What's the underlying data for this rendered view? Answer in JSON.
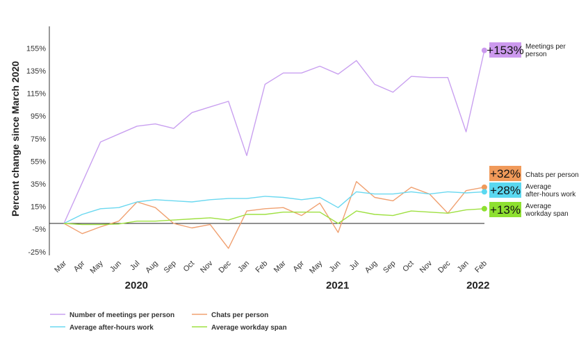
{
  "chart_data": {
    "type": "line",
    "ylabel": "Percent change since March 2020",
    "y_ticks": [
      "155%",
      "135%",
      "115%",
      "95%",
      "75%",
      "55%",
      "35%",
      "15%",
      "-5%",
      "-25%"
    ],
    "ylim": [
      -25,
      165
    ],
    "categories": [
      "Mar",
      "Apr",
      "May",
      "Jun",
      "Jul",
      "Aug",
      "Sep",
      "Oct",
      "Nov",
      "Dec",
      "Jan",
      "Feb",
      "Mar",
      "Apr",
      "May",
      "Jun",
      "Jul",
      "Aug",
      "Sep",
      "Oct",
      "Nov",
      "Dec",
      "Jan",
      "Feb"
    ],
    "year_labels": [
      {
        "text": "2020",
        "index": 4.5
      },
      {
        "text": "2021",
        "index": 15.5
      },
      {
        "text": "2022",
        "index": 22.5
      }
    ],
    "series": [
      {
        "name": "Number of meetings per person",
        "color": "#c9a0f0",
        "values": [
          0,
          36,
          72,
          79,
          86,
          88,
          84,
          98,
          103,
          108,
          60,
          123,
          133,
          133,
          139,
          132,
          144,
          123,
          116,
          130,
          129,
          129,
          81,
          153
        ],
        "end_badge": "+153%",
        "end_label": [
          "Meetings per",
          "person"
        ]
      },
      {
        "name": "Chats per person",
        "color": "#f0a070",
        "values": [
          0,
          -9,
          -3,
          2,
          19,
          14,
          0,
          -4,
          -1,
          -22,
          11,
          13,
          14,
          7,
          18,
          -8,
          37,
          23,
          20,
          32,
          26,
          9,
          29,
          32
        ],
        "end_badge": "+32%",
        "end_label": [
          "Chats per person"
        ]
      },
      {
        "name": "Average after-hours work",
        "color": "#6ad8f0",
        "values": [
          0,
          8,
          13,
          14,
          19,
          21,
          20,
          19,
          21,
          22,
          22,
          24,
          23,
          21,
          23,
          14,
          28,
          26,
          26,
          28,
          26,
          28,
          27,
          28
        ],
        "end_badge": "+28%",
        "end_label": [
          "Average",
          "after-hours work"
        ]
      },
      {
        "name": "Average workday span",
        "color": "#9ee040",
        "values": [
          0,
          -1,
          -1,
          -0.5,
          2,
          2,
          3,
          4,
          5,
          3,
          8,
          8,
          10,
          10,
          10,
          0,
          11,
          8,
          7,
          11,
          10,
          9,
          12,
          13
        ],
        "end_badge": "+13%",
        "end_label": [
          "Average",
          "workday span"
        ]
      }
    ],
    "badge_colors": [
      "#cc99ee",
      "#f09a5a",
      "#5ad8f0",
      "#8ee030"
    ],
    "legend_order": [
      0,
      1,
      2,
      3
    ],
    "baseline": 0
  }
}
